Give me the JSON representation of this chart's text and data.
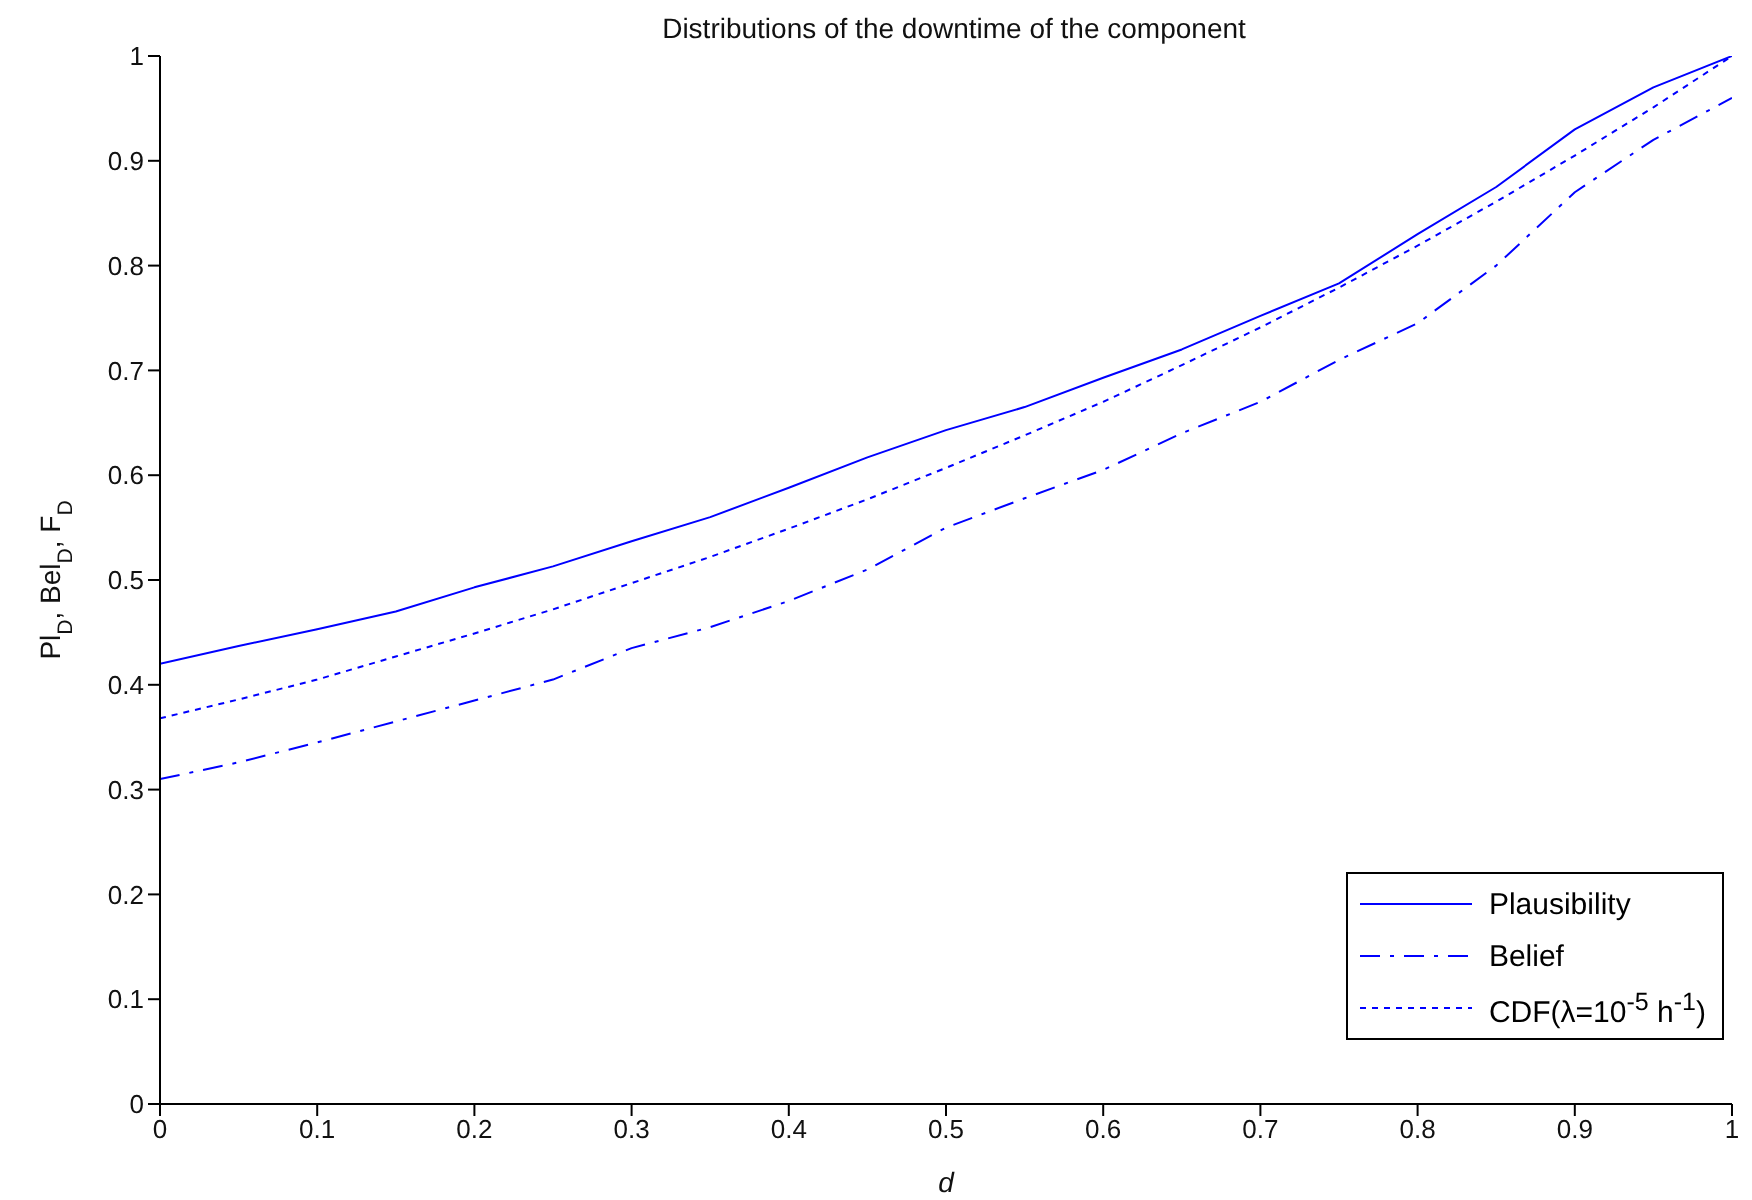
{
  "chart_data": {
    "type": "line",
    "title": "Distributions of the downtime of the component",
    "xlabel": "d",
    "ylabel": "Pl$_{D}$, Bel$_{D}$, F$_{D}$",
    "x": [
      0,
      0.05,
      0.1,
      0.15,
      0.2,
      0.25,
      0.3,
      0.35,
      0.4,
      0.45,
      0.5,
      0.55,
      0.6,
      0.65,
      0.7,
      0.75,
      0.8,
      0.85,
      0.9,
      0.95,
      1
    ],
    "series": [
      {
        "name": "Plausibility",
        "color": "#0000ff",
        "line_style": "solid",
        "values": [
          0.42,
          0.437,
          0.453,
          0.47,
          0.493,
          0.513,
          0.537,
          0.56,
          0.588,
          0.617,
          0.643,
          0.665,
          0.693,
          0.72,
          0.752,
          0.783,
          0.83,
          0.875,
          0.93,
          0.97,
          1
        ]
      },
      {
        "name": "Belief",
        "color": "#0000ff",
        "line_style": "dashed",
        "values": [
          0.31,
          0.326,
          0.345,
          0.365,
          0.385,
          0.405,
          0.435,
          0.455,
          0.48,
          0.51,
          0.55,
          0.578,
          0.605,
          0.64,
          0.67,
          0.71,
          0.745,
          0.8,
          0.87,
          0.92,
          0.96
        ]
      },
      {
        "name": "CDF(λ=10$^{-5}$ h$^{-1}$)",
        "color": "#0000ff",
        "line_style": "dotted",
        "values": [
          0.368,
          0.386,
          0.405,
          0.427,
          0.449,
          0.472,
          0.497,
          0.522,
          0.549,
          0.577,
          0.607,
          0.638,
          0.67,
          0.705,
          0.741,
          0.779,
          0.819,
          0.861,
          0.905,
          0.951,
          1
        ]
      }
    ],
    "xlim": [
      0,
      1
    ],
    "xticks": [
      0,
      0.1,
      0.2,
      0.3,
      0.4,
      0.5,
      0.6,
      0.7,
      0.8,
      0.9,
      1
    ],
    "ylim": [
      0,
      1
    ],
    "yticks": [
      0,
      0.1,
      0.2,
      0.3,
      0.4,
      0.5,
      0.6,
      0.7,
      0.8,
      0.9,
      1
    ],
    "grid": false,
    "legend": "bottom right",
    "marker": "none"
  }
}
